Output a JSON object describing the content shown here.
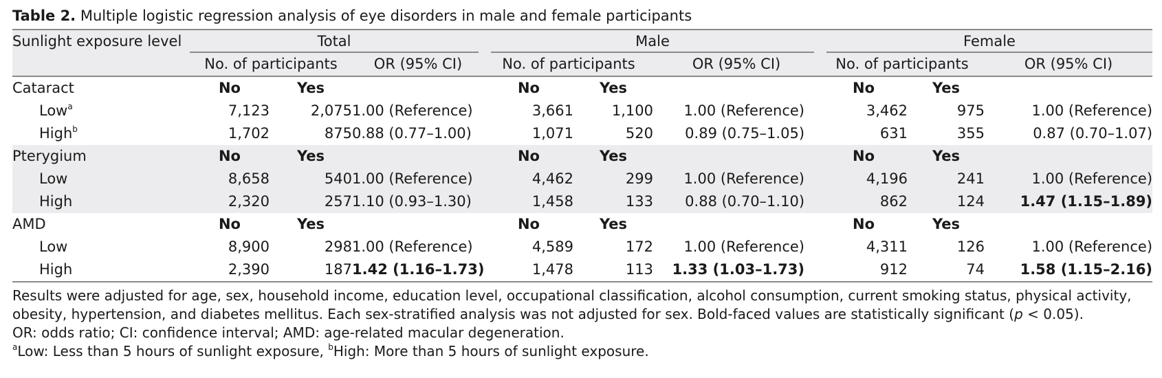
{
  "caption": {
    "label": "Table 2.",
    "text": " Multiple logistic regression analysis of eye disorders in male and female participants"
  },
  "header": {
    "row_label": "Sunlight exposure level",
    "groups": [
      "Total",
      "Male",
      "Female"
    ],
    "sub_participants": "No. of participants",
    "sub_or": "OR (95% CI)"
  },
  "sections": [
    {
      "name": "Cataract",
      "no": "No",
      "yes": "Yes",
      "rows": [
        {
          "label": "Low",
          "sup": "a",
          "total": [
            "7,123",
            "2,075",
            "1.00 (Reference)"
          ],
          "male": [
            "3,661",
            "1,100",
            "1.00 (Reference)"
          ],
          "female": [
            "3,462",
            "975",
            "1.00 (Reference)"
          ]
        },
        {
          "label": "High",
          "sup": "b",
          "total": [
            "1,702",
            "875",
            "0.88 (0.77–1.00)"
          ],
          "male": [
            "1,071",
            "520",
            "0.89 (0.75–1.05)"
          ],
          "female": [
            "631",
            "355",
            "0.87 (0.70–1.07)"
          ]
        }
      ]
    },
    {
      "name": "Pterygium",
      "no": "No",
      "yes": "Yes",
      "rows": [
        {
          "label": "Low",
          "sup": "",
          "total": [
            "8,658",
            "540",
            "1.00 (Reference)"
          ],
          "male": [
            "4,462",
            "299",
            "1.00 (Reference)"
          ],
          "female": [
            "4,196",
            "241",
            "1.00 (Reference)"
          ]
        },
        {
          "label": "High",
          "sup": "",
          "total": [
            "2,320",
            "257",
            "1.10 (0.93–1.30)"
          ],
          "male": [
            "1,458",
            "133",
            "0.88 (0.70–1.10)"
          ],
          "female": [
            "862",
            "124",
            "1.47 (1.15–1.89)"
          ]
        }
      ]
    },
    {
      "name": "AMD",
      "no": "No",
      "yes": "Yes",
      "rows": [
        {
          "label": "Low",
          "sup": "",
          "total": [
            "8,900",
            "298",
            "1.00 (Reference)"
          ],
          "male": [
            "4,589",
            "172",
            "1.00 (Reference)"
          ],
          "female": [
            "4,311",
            "126",
            "1.00 (Reference)"
          ]
        },
        {
          "label": "High",
          "sup": "",
          "total": [
            "2,390",
            "187",
            "1.42 (1.16–1.73)"
          ],
          "male": [
            "1,478",
            "113",
            "1.33 (1.03–1.73)"
          ],
          "female": [
            "912",
            "74",
            "1.58 (1.15–2.16)"
          ]
        }
      ]
    }
  ],
  "notes": {
    "line1": "Results were adjusted for age, sex, household income, education level, occupational classification, alcohol consumption, current smoking status, physical activity,",
    "line2_pre": "obesity, hypertension, and diabetes mellitus. Each sex-stratified analysis was not adjusted for sex. Bold-faced values are statistically significant (",
    "line2_p": "p",
    "line2_post": " < 0.05).",
    "line3": "OR: odds ratio; CI: confidence interval; AMD: age-related macular degeneration.",
    "line4_a": "a",
    "line4_a_text": "Low: Less than 5 hours of sunlight exposure, ",
    "line4_b": "b",
    "line4_b_text": "High: More than 5 hours of sunlight exposure."
  }
}
